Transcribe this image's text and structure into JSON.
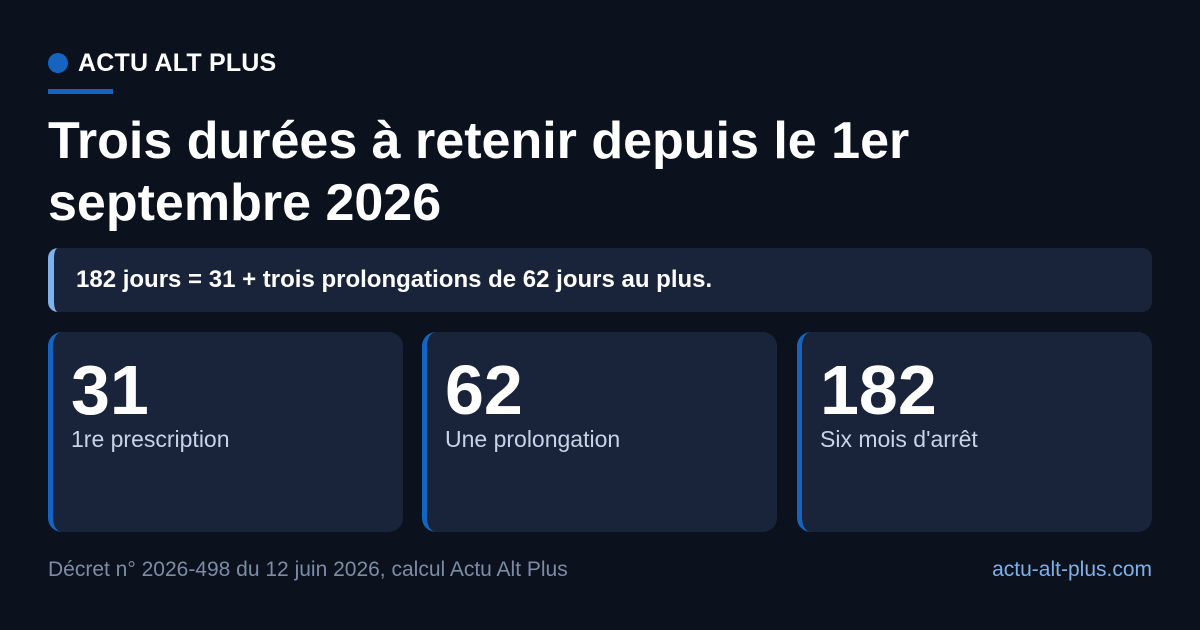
{
  "brand": {
    "name": "ACTU ALT PLUS",
    "dot_color": "#1565c0"
  },
  "title": "Trois durées à retenir depuis le 1er septembre 2026",
  "callout": "182 jours = 31 + trois prolongations de 62 jours au plus.",
  "cards": [
    {
      "value": "31",
      "label": "1re prescription"
    },
    {
      "value": "62",
      "label": "Une prolongation"
    },
    {
      "value": "182",
      "label": "Six mois d'arrêt"
    }
  ],
  "footer": {
    "source": "Décret n° 2026-498 du 12 juin 2026, calcul Actu Alt Plus",
    "url": "actu-alt-plus.com"
  },
  "colors": {
    "background": "#0b111d",
    "card_background": "#19233a",
    "accent": "#1565c0",
    "accent_light": "#7fb1ea"
  }
}
